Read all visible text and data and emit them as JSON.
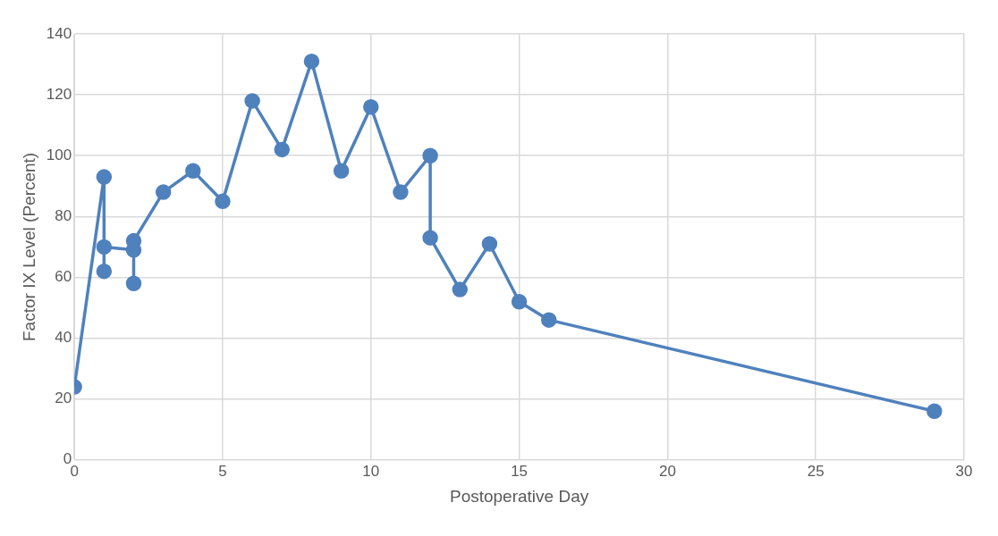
{
  "chart_data": {
    "type": "line",
    "xlabel": "Postoperative Day",
    "ylabel": "Factor IX Level (Percent)",
    "x": [
      0,
      1,
      1,
      1,
      2,
      2,
      2,
      3,
      4,
      5,
      6,
      7,
      8,
      9,
      10,
      11,
      12,
      12,
      13,
      14,
      15,
      16,
      29
    ],
    "series": [
      {
        "color": "#4f81bd",
        "values": [
          24,
          93,
          62,
          70,
          69,
          58,
          72,
          88,
          95,
          85,
          118,
          102,
          131,
          95,
          116,
          88,
          100,
          73,
          56,
          71,
          52,
          46,
          16
        ]
      }
    ],
    "xlim": [
      0,
      30
    ],
    "xticks": [
      0,
      5,
      10,
      15,
      20,
      25,
      30
    ],
    "ylim": [
      0,
      140
    ],
    "yticks": [
      0,
      20,
      40,
      60,
      80,
      100,
      120,
      140
    ],
    "grid": true,
    "legend": false,
    "marker": "circle",
    "line_style": "solid"
  }
}
